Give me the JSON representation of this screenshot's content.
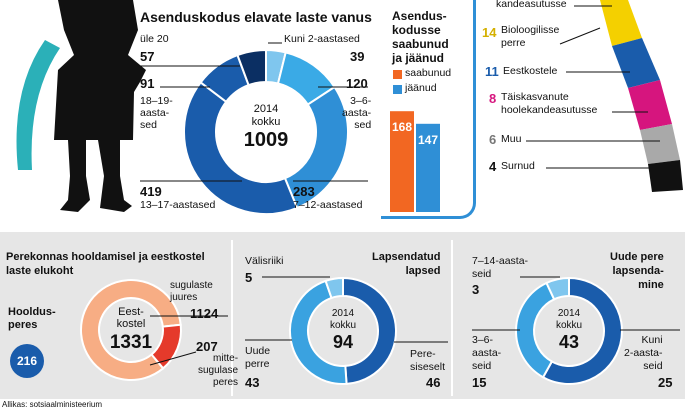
{
  "top_left_chart": {
    "title": "Asenduskodus elavate laste vanus",
    "center_year": "2014",
    "center_label": "kokku",
    "center_total": "1009",
    "labels": {
      "ule20_label": "üle 20",
      "ule20_value": "57",
      "kuni2_label": "Kuni 2-aastased",
      "kuni2_value": "39",
      "a18_19_value": "91",
      "a18_19_label": "18–19-\naasta-\nsed",
      "a3_6_value": "120",
      "a3_6_label": "3–6-\naasta-\nsed",
      "a13_17_value": "419",
      "a13_17_label": "13–17-aastased",
      "a7_12_value": "283",
      "a7_12_label": "7–12-aastased"
    }
  },
  "arrivals_chart": {
    "title": "Asendus-\nkodusse\nsaabunud\nja jäänud",
    "legend_arrived": "saabunud",
    "legend_stayed": "jäänud",
    "arrived_value": "168",
    "stayed_value": "147"
  },
  "reasons_list": {
    "items": [
      {
        "value": "",
        "label": "kandeasutusse",
        "color": "#f4d000"
      },
      {
        "value": "14",
        "label": "Bioloogilisse\nperre",
        "color": "#f4d000"
      },
      {
        "value": "11",
        "label": "Eestkostele",
        "color": "#1a5cab"
      },
      {
        "value": "8",
        "label": "Täiskasvanute\nhoolekandeasutusse",
        "color": "#d6157e"
      },
      {
        "value": "6",
        "label": "Muu",
        "color": "#8c8c8c"
      },
      {
        "value": "4",
        "label": "Surnud",
        "color": "#111111"
      }
    ]
  },
  "foster_chart": {
    "title": "Perekonnas hooldamisel ja eestkostel\nlaste elukoht",
    "hooldus_label": "Hooldus-\nperes",
    "hooldus_value": "216",
    "center_label": "Eest-\nkostel",
    "center_total": "1331",
    "relatives_label": "sugulaste\njuures",
    "relatives_value": "1124",
    "nonrelatives_value": "207",
    "nonrelatives_label": "mitte-\nsugulase\nperes"
  },
  "adopted_chart": {
    "title": "Lapsendatud\nlapsed",
    "abroad_label": "Välisriiki",
    "abroad_value": "5",
    "center_year": "2014",
    "center_label": "kokku",
    "center_total": "94",
    "new_family_label": "Uude\nperre",
    "new_family_value": "43",
    "own_family_label": "Pere-\nsiseselt",
    "own_family_value": "46"
  },
  "new_family_chart": {
    "title": "Uude pere\nlapsenda-\nmine",
    "a7_14_label": "7–14-aasta-\nseid",
    "a7_14_value": "3",
    "a3_6_label": "3–6-\naasta-\nseid",
    "a3_6_value": "15",
    "center_year": "2014",
    "center_label": "kokku",
    "center_total": "43",
    "kuni2_label": "Kuni\n2-aasta-\nseid",
    "kuni2_value": "25"
  },
  "source": "Allikas: sotsiaalministeerium",
  "colors": {
    "dark_blue": "#1a5cab",
    "navy": "#0b2f63",
    "mid_blue": "#2f8fd6",
    "light_blue": "#7fc6ee",
    "teal": "#2bb0b8",
    "orange": "#f26722",
    "salmon": "#f7ad84",
    "red": "#e53a2b",
    "magenta": "#d6157e",
    "yellow": "#f4d000"
  },
  "chart_data": [
    {
      "type": "pie",
      "title": "Asenduskodus elavate laste vanus",
      "categories": [
        "Kuni 2-aastased",
        "3–6-aastased",
        "7–12-aastased",
        "13–17-aastased",
        "18–19-aastased",
        "üle 20"
      ],
      "values": [
        39,
        120,
        283,
        419,
        91,
        57
      ]
    },
    {
      "type": "bar",
      "title": "Asendus-kodusse saabunud ja jäänud",
      "categories": [
        "saabunud",
        "jäänud"
      ],
      "values": [
        168,
        147
      ]
    },
    {
      "type": "pie",
      "title": "Perekonnas hooldamisel ja eestkostel laste elukoht",
      "categories": [
        "sugulaste juures",
        "mitte-sugulase peres"
      ],
      "values": [
        1124,
        207
      ]
    },
    {
      "type": "pie",
      "title": "Lapsendatud lapsed",
      "categories": [
        "Pere-siseselt",
        "Uude perre",
        "Välisriiki"
      ],
      "values": [
        46,
        43,
        5
      ]
    },
    {
      "type": "pie",
      "title": "Uude pere lapsenda-mine",
      "categories": [
        "Kuni 2-aasta-seid",
        "3–6-aasta-seid",
        "7–14-aasta-seid"
      ],
      "values": [
        25,
        15,
        3
      ]
    }
  ]
}
